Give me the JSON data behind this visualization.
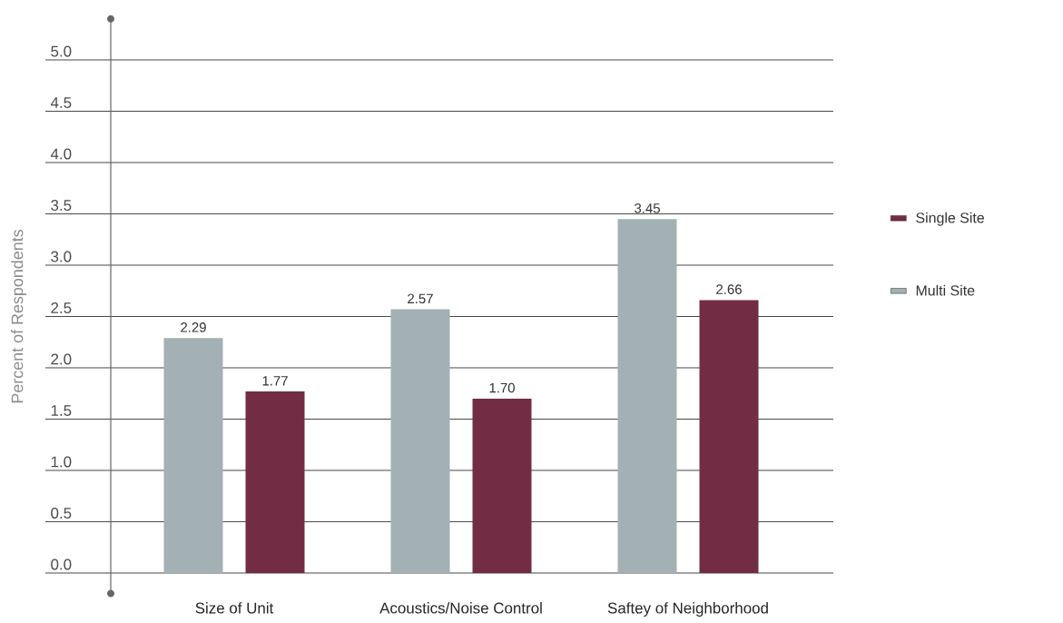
{
  "chart_data": {
    "type": "bar",
    "ylabel": "Percent of Respondents",
    "categories": [
      "Size of Unit",
      "Acoustics/Noise Control",
      "Saftey of Neighborhood"
    ],
    "series": [
      {
        "name": "Multi Site",
        "color": "#a3b0b4",
        "values": [
          2.29,
          2.57,
          3.45
        ],
        "value_labels": [
          "2.29",
          "2.57",
          "3.45"
        ]
      },
      {
        "name": "Single Site",
        "color": "#722d45",
        "values": [
          1.77,
          1.7,
          2.66
        ],
        "value_labels": [
          "1.77",
          "1.70",
          "2.66"
        ]
      }
    ],
    "ylim": [
      -0.2,
      5.4
    ],
    "yticks": [
      {
        "value": 0,
        "label": "0.0"
      },
      0.5,
      {
        "value": 1,
        "label": "1.0"
      },
      1.5,
      {
        "value": 2,
        "label": "2.0"
      },
      2.5,
      {
        "value": 3,
        "label": "3.0"
      },
      3.5,
      {
        "value": 4,
        "label": "4.0"
      },
      4.5,
      {
        "value": 5,
        "label": "5.0"
      }
    ],
    "grid": "y",
    "legend": "right"
  }
}
